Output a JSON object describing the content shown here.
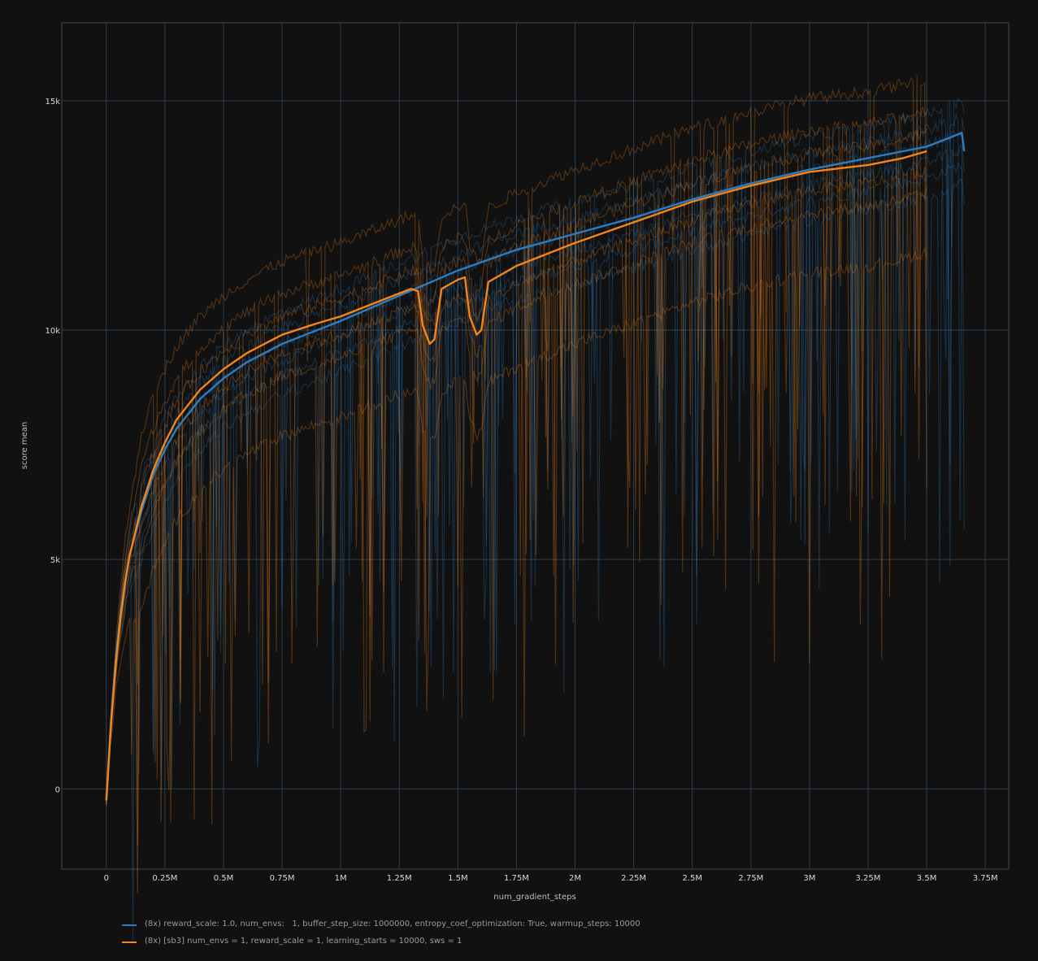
{
  "chart_data": {
    "type": "line",
    "title": "",
    "xlabel": "num_gradient_steps",
    "ylabel": "score mean",
    "xlim": [
      -190000,
      3850000
    ],
    "ylim": [
      -1750,
      16700
    ],
    "grid": true,
    "legend_position": "bottom-left",
    "background": "#111111",
    "grid_color": "#2c3e50",
    "x_ticks": [
      {
        "value": 0,
        "label": "0"
      },
      {
        "value": 250000,
        "label": "0.25M"
      },
      {
        "value": 500000,
        "label": "0.5M"
      },
      {
        "value": 750000,
        "label": "0.75M"
      },
      {
        "value": 1000000,
        "label": "1M"
      },
      {
        "value": 1250000,
        "label": "1.25M"
      },
      {
        "value": 1500000,
        "label": "1.5M"
      },
      {
        "value": 1750000,
        "label": "1.75M"
      },
      {
        "value": 2000000,
        "label": "2M"
      },
      {
        "value": 2250000,
        "label": "2.25M"
      },
      {
        "value": 2500000,
        "label": "2.5M"
      },
      {
        "value": 2750000,
        "label": "2.75M"
      },
      {
        "value": 3000000,
        "label": "3M"
      },
      {
        "value": 3250000,
        "label": "3.25M"
      },
      {
        "value": 3500000,
        "label": "3.5M"
      },
      {
        "value": 3750000,
        "label": "3.75M"
      }
    ],
    "y_ticks": [
      {
        "value": 0,
        "label": "0"
      },
      {
        "value": 5000,
        "label": "5k"
      },
      {
        "value": 10000,
        "label": "10k"
      },
      {
        "value": 15000,
        "label": "15k"
      }
    ],
    "series": [
      {
        "name": "(8x) reward_scale: 1.0, num_envs:   1, buffer_step_size: 1000000, entropy_coef_optimization: True, warmup_steps: 10000",
        "color": "#2e7dbf",
        "x": [
          0,
          20000,
          40000,
          60000,
          80000,
          100000,
          150000,
          200000,
          250000,
          300000,
          400000,
          500000,
          600000,
          750000,
          900000,
          1000000,
          1250000,
          1500000,
          1750000,
          2000000,
          2250000,
          2500000,
          2750000,
          3000000,
          3250000,
          3400000,
          3500000,
          3550000,
          3600000,
          3650000,
          3660000
        ],
        "values": [
          -250,
          1500,
          2800,
          3800,
          4500,
          5100,
          6050,
          6850,
          7400,
          7850,
          8500,
          8950,
          9300,
          9700,
          10000,
          10200,
          10750,
          11300,
          11750,
          12100,
          12450,
          12850,
          13200,
          13500,
          13750,
          13900,
          14000,
          14100,
          14200,
          14300,
          13900
        ]
      },
      {
        "name": "(8x) [sb3] num_envs = 1, reward_scale = 1, learning_starts = 10000, sws = 1",
        "color": "#f58518",
        "x": [
          0,
          20000,
          40000,
          60000,
          80000,
          100000,
          150000,
          200000,
          250000,
          300000,
          400000,
          500000,
          600000,
          750000,
          900000,
          1000000,
          1250000,
          1300000,
          1330000,
          1350000,
          1380000,
          1400000,
          1430000,
          1500000,
          1530000,
          1550000,
          1580000,
          1600000,
          1630000,
          1750000,
          2000000,
          2250000,
          2500000,
          2750000,
          3000000,
          3250000,
          3400000,
          3500000
        ],
        "values": [
          -250,
          1400,
          2700,
          3700,
          4500,
          5100,
          6150,
          6950,
          7550,
          8050,
          8700,
          9150,
          9500,
          9900,
          10150,
          10300,
          10800,
          10900,
          10850,
          10100,
          9700,
          9800,
          10900,
          11100,
          11150,
          10300,
          9900,
          10000,
          11050,
          11400,
          11900,
          12350,
          12800,
          13150,
          13450,
          13600,
          13750,
          13900
        ]
      }
    ]
  },
  "legend": {
    "items": [
      {
        "label": "(8x) reward_scale: 1.0, num_envs:   1, buffer_step_size: 1000000, entropy_coef_optimization: True, warmup_steps: 10000",
        "color": "#2e7dbf"
      },
      {
        "label": "(8x) [sb3] num_envs = 1, reward_scale = 1, learning_starts = 10000, sws = 1",
        "color": "#f58518"
      }
    ]
  }
}
